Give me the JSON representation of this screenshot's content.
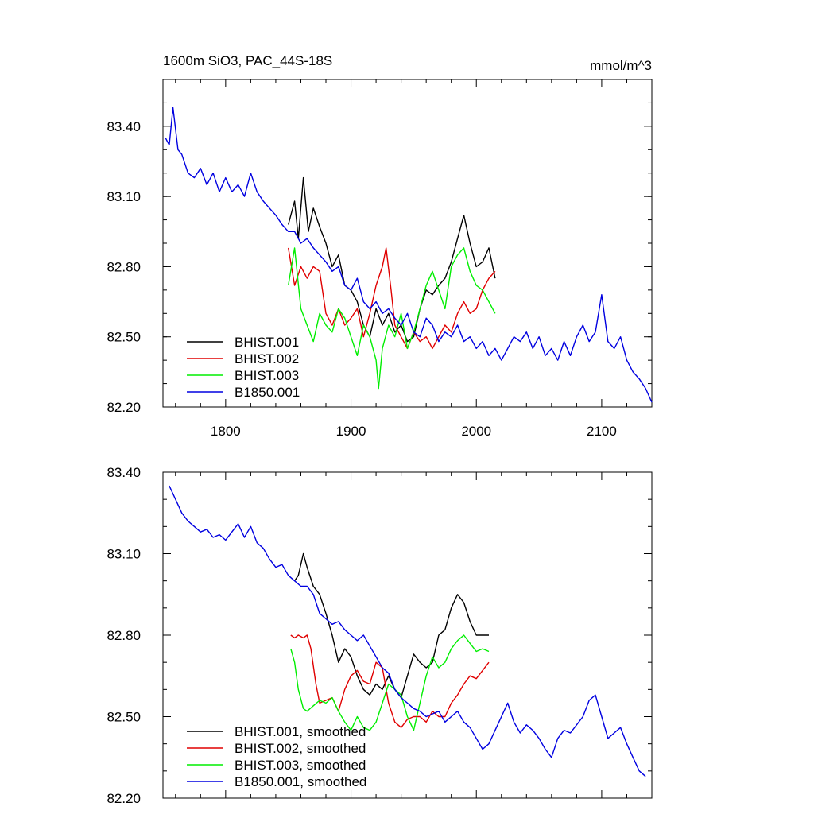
{
  "chart_data": [
    {
      "type": "line",
      "title": "1600m SiO3, PAC_44S-18S",
      "units": "mmol/m^3",
      "xlim": [
        1750,
        2140
      ],
      "ylim": [
        82.2,
        83.6
      ],
      "xticks": [
        1800,
        1900,
        2000,
        2100
      ],
      "xtick_labels": [
        "1800",
        "1900",
        "2000",
        "2100"
      ],
      "yticks": [
        82.2,
        82.5,
        82.8,
        83.1,
        83.4
      ],
      "ytick_labels": [
        "82.20",
        "82.50",
        "82.80",
        "83.10",
        "83.40"
      ],
      "grid": false,
      "legend_position": "bottom-left",
      "series": [
        {
          "name": "BHIST.001",
          "color": "#000000",
          "x": [
            1850,
            1855,
            1858,
            1862,
            1866,
            1870,
            1875,
            1880,
            1885,
            1890,
            1895,
            1900,
            1905,
            1910,
            1915,
            1920,
            1925,
            1930,
            1935,
            1940,
            1945,
            1950,
            1955,
            1960,
            1965,
            1970,
            1975,
            1980,
            1985,
            1990,
            1995,
            2000,
            2005,
            2010,
            2015
          ],
          "y": [
            82.98,
            83.08,
            82.92,
            83.18,
            82.95,
            83.05,
            82.97,
            82.9,
            82.8,
            82.85,
            82.72,
            82.7,
            82.65,
            82.55,
            82.5,
            82.62,
            82.55,
            82.6,
            82.52,
            82.55,
            82.48,
            82.5,
            82.62,
            82.7,
            82.68,
            82.72,
            82.75,
            82.82,
            82.92,
            83.02,
            82.9,
            82.8,
            82.82,
            82.88,
            82.75
          ]
        },
        {
          "name": "BHIST.002",
          "color": "#e00000",
          "x": [
            1850,
            1855,
            1860,
            1865,
            1870,
            1875,
            1880,
            1885,
            1890,
            1895,
            1900,
            1905,
            1910,
            1915,
            1920,
            1925,
            1928,
            1932,
            1935,
            1940,
            1945,
            1950,
            1955,
            1960,
            1965,
            1970,
            1975,
            1980,
            1985,
            1990,
            1995,
            2000,
            2005,
            2010,
            2015
          ],
          "y": [
            82.88,
            82.72,
            82.8,
            82.75,
            82.8,
            82.78,
            82.6,
            82.55,
            82.62,
            82.55,
            82.58,
            82.62,
            82.5,
            82.6,
            82.72,
            82.8,
            82.88,
            82.7,
            82.55,
            82.5,
            82.45,
            82.52,
            82.48,
            82.5,
            82.45,
            82.5,
            82.55,
            82.52,
            82.6,
            82.65,
            82.6,
            82.62,
            82.7,
            82.75,
            82.78
          ]
        },
        {
          "name": "BHIST.003",
          "color": "#00ee00",
          "x": [
            1850,
            1855,
            1860,
            1865,
            1870,
            1875,
            1880,
            1885,
            1890,
            1895,
            1900,
            1905,
            1910,
            1915,
            1920,
            1922,
            1925,
            1930,
            1935,
            1940,
            1945,
            1950,
            1955,
            1960,
            1965,
            1970,
            1975,
            1980,
            1985,
            1990,
            1995,
            2000,
            2005,
            2010,
            2015
          ],
          "y": [
            82.72,
            82.88,
            82.62,
            82.55,
            82.48,
            82.6,
            82.55,
            82.52,
            82.62,
            82.58,
            82.5,
            82.42,
            82.55,
            82.5,
            82.4,
            82.28,
            82.45,
            82.55,
            82.5,
            82.6,
            82.45,
            82.52,
            82.62,
            82.72,
            82.78,
            82.7,
            82.62,
            82.8,
            82.85,
            82.88,
            82.78,
            82.72,
            82.7,
            82.65,
            82.6
          ]
        },
        {
          "name": "B1850.001",
          "color": "#0000e0",
          "x": [
            1752,
            1755,
            1758,
            1762,
            1765,
            1770,
            1775,
            1780,
            1785,
            1790,
            1795,
            1800,
            1805,
            1810,
            1815,
            1820,
            1825,
            1830,
            1835,
            1840,
            1845,
            1850,
            1855,
            1860,
            1865,
            1870,
            1875,
            1880,
            1885,
            1890,
            1895,
            1900,
            1905,
            1910,
            1915,
            1920,
            1925,
            1930,
            1935,
            1940,
            1945,
            1950,
            1955,
            1960,
            1965,
            1970,
            1975,
            1980,
            1985,
            1990,
            1995,
            2000,
            2005,
            2010,
            2015,
            2020,
            2025,
            2030,
            2035,
            2040,
            2045,
            2050,
            2055,
            2060,
            2065,
            2070,
            2075,
            2080,
            2085,
            2090,
            2095,
            2100,
            2105,
            2110,
            2115,
            2120,
            2125,
            2130,
            2135,
            2140
          ],
          "y": [
            83.35,
            83.32,
            83.48,
            83.3,
            83.28,
            83.2,
            83.18,
            83.22,
            83.15,
            83.2,
            83.12,
            83.18,
            83.12,
            83.15,
            83.1,
            83.2,
            83.12,
            83.08,
            83.05,
            83.02,
            82.98,
            82.95,
            82.95,
            82.9,
            82.92,
            82.88,
            82.85,
            82.82,
            82.78,
            82.8,
            82.72,
            82.7,
            82.75,
            82.65,
            82.62,
            82.65,
            82.6,
            82.62,
            82.58,
            82.55,
            82.6,
            82.52,
            82.5,
            82.58,
            82.55,
            82.48,
            82.52,
            82.5,
            82.55,
            82.48,
            82.5,
            82.45,
            82.48,
            82.42,
            82.45,
            82.4,
            82.45,
            82.5,
            82.48,
            82.52,
            82.45,
            82.5,
            82.42,
            82.45,
            82.4,
            82.48,
            82.42,
            82.5,
            82.55,
            82.48,
            82.52,
            82.68,
            82.48,
            82.45,
            82.5,
            82.4,
            82.35,
            82.32,
            82.28,
            82.22
          ]
        }
      ]
    },
    {
      "type": "line",
      "xlim": [
        1750,
        2140
      ],
      "ylim": [
        82.2,
        83.4
      ],
      "xticks": [
        1800,
        1900,
        2000,
        2100
      ],
      "yticks": [
        82.2,
        82.5,
        82.8,
        83.1,
        83.4
      ],
      "ytick_labels": [
        "82.20",
        "82.50",
        "82.80",
        "83.10",
        "83.40"
      ],
      "grid": false,
      "legend_position": "bottom-left",
      "series": [
        {
          "name": "BHIST.001, smoothed",
          "color": "#000000",
          "x": [
            1855,
            1858,
            1862,
            1865,
            1870,
            1875,
            1880,
            1885,
            1890,
            1895,
            1900,
            1905,
            1910,
            1915,
            1920,
            1925,
            1930,
            1935,
            1940,
            1945,
            1950,
            1955,
            1960,
            1965,
            1970,
            1975,
            1980,
            1985,
            1990,
            1995,
            2000,
            2005,
            2010
          ],
          "y": [
            83.0,
            83.02,
            83.1,
            83.05,
            82.98,
            82.95,
            82.88,
            82.8,
            82.7,
            82.75,
            82.72,
            82.65,
            82.6,
            82.58,
            82.62,
            82.6,
            82.65,
            82.6,
            82.57,
            82.65,
            82.73,
            82.7,
            82.68,
            82.7,
            82.8,
            82.82,
            82.9,
            82.95,
            82.92,
            82.85,
            82.8,
            82.8,
            82.8
          ]
        },
        {
          "name": "BHIST.002, smoothed",
          "color": "#e00000",
          "x": [
            1852,
            1855,
            1858,
            1862,
            1865,
            1868,
            1872,
            1875,
            1880,
            1885,
            1890,
            1895,
            1900,
            1905,
            1910,
            1915,
            1920,
            1925,
            1930,
            1935,
            1940,
            1945,
            1950,
            1955,
            1960,
            1965,
            1970,
            1975,
            1980,
            1985,
            1990,
            1995,
            2000,
            2005,
            2010
          ],
          "y": [
            82.8,
            82.79,
            82.8,
            82.79,
            82.8,
            82.75,
            82.62,
            82.55,
            82.56,
            82.57,
            82.52,
            82.6,
            82.65,
            82.67,
            82.63,
            82.62,
            82.7,
            82.68,
            82.55,
            82.48,
            82.46,
            82.49,
            82.5,
            82.5,
            82.48,
            82.52,
            82.5,
            82.5,
            82.55,
            82.58,
            82.62,
            82.65,
            82.64,
            82.67,
            82.7
          ]
        },
        {
          "name": "BHIST.003, smoothed",
          "color": "#00ee00",
          "x": [
            1852,
            1855,
            1858,
            1862,
            1865,
            1870,
            1875,
            1880,
            1885,
            1890,
            1895,
            1900,
            1905,
            1910,
            1915,
            1920,
            1925,
            1930,
            1935,
            1940,
            1945,
            1950,
            1955,
            1960,
            1965,
            1970,
            1975,
            1980,
            1985,
            1990,
            1995,
            2000,
            2005,
            2010
          ],
          "y": [
            82.75,
            82.7,
            82.6,
            82.53,
            82.52,
            82.54,
            82.56,
            82.55,
            82.57,
            82.52,
            82.48,
            82.45,
            82.5,
            82.46,
            82.45,
            82.48,
            82.55,
            82.62,
            82.6,
            82.58,
            82.5,
            82.45,
            82.55,
            82.65,
            82.72,
            82.68,
            82.7,
            82.75,
            82.78,
            82.8,
            82.77,
            82.74,
            82.75,
            82.74
          ]
        },
        {
          "name": "B1850.001, smoothed",
          "color": "#0000e0",
          "x": [
            1755,
            1760,
            1765,
            1770,
            1775,
            1780,
            1785,
            1790,
            1795,
            1800,
            1805,
            1810,
            1815,
            1820,
            1825,
            1830,
            1835,
            1840,
            1845,
            1850,
            1855,
            1860,
            1865,
            1870,
            1875,
            1880,
            1885,
            1890,
            1895,
            1900,
            1905,
            1910,
            1915,
            1920,
            1925,
            1930,
            1935,
            1940,
            1945,
            1950,
            1955,
            1960,
            1965,
            1970,
            1975,
            1980,
            1985,
            1990,
            1995,
            2000,
            2005,
            2010,
            2015,
            2020,
            2025,
            2030,
            2035,
            2040,
            2045,
            2050,
            2055,
            2060,
            2065,
            2070,
            2075,
            2080,
            2085,
            2090,
            2095,
            2100,
            2105,
            2110,
            2115,
            2120,
            2125,
            2130,
            2135
          ],
          "y": [
            83.35,
            83.3,
            83.25,
            83.22,
            83.2,
            83.18,
            83.19,
            83.16,
            83.17,
            83.15,
            83.18,
            83.21,
            83.16,
            83.2,
            83.14,
            83.12,
            83.08,
            83.05,
            83.06,
            83.02,
            83.0,
            82.98,
            82.98,
            82.95,
            82.88,
            82.86,
            82.84,
            82.85,
            82.82,
            82.8,
            82.78,
            82.8,
            82.76,
            82.72,
            82.68,
            82.66,
            82.6,
            82.57,
            82.55,
            82.53,
            82.52,
            82.5,
            82.51,
            82.52,
            82.48,
            82.5,
            82.52,
            82.48,
            82.46,
            82.42,
            82.38,
            82.4,
            82.45,
            82.5,
            82.55,
            82.48,
            82.44,
            82.47,
            82.45,
            82.42,
            82.38,
            82.35,
            82.42,
            82.45,
            82.44,
            82.47,
            82.5,
            82.56,
            82.58,
            82.5,
            82.42,
            82.44,
            82.46,
            82.4,
            82.35,
            82.3,
            82.28
          ]
        }
      ]
    }
  ]
}
